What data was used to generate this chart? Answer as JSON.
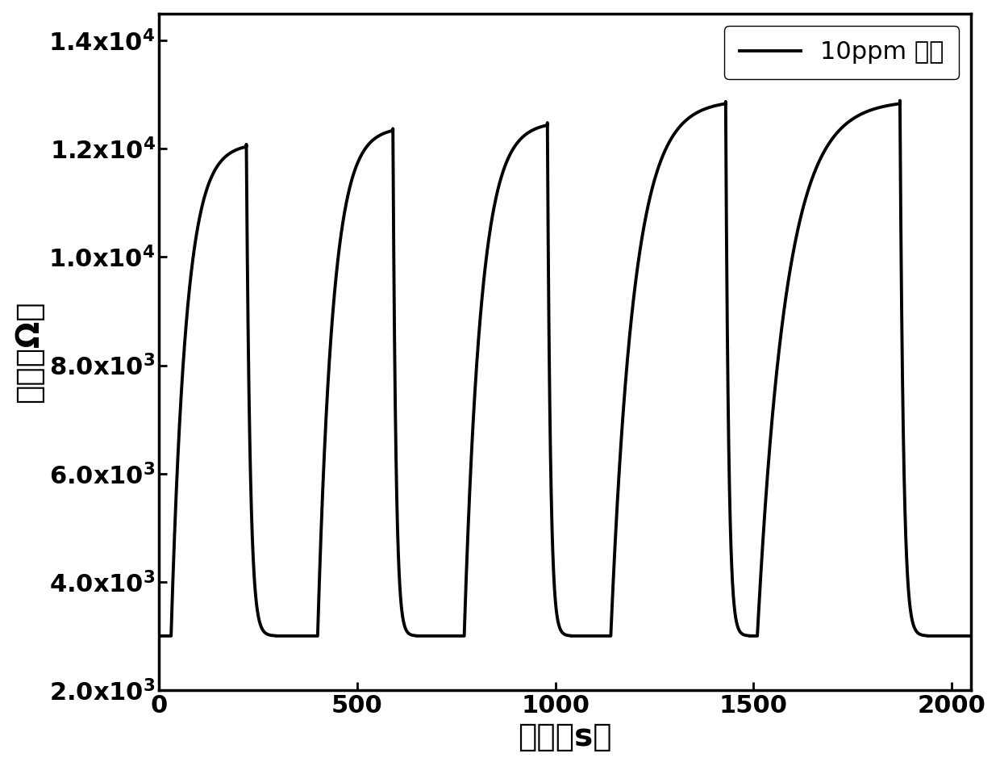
{
  "ylabel": "电阵（Ω）",
  "xlabel": "时间（s）",
  "legend_label": "10ppm 丙酮",
  "xlim": [
    0,
    2050
  ],
  "ylim": [
    2000,
    14500
  ],
  "yticks": [
    2000,
    4000,
    6000,
    8000,
    10000,
    12000,
    14000
  ],
  "xticks": [
    0,
    500,
    1000,
    1500,
    2000
  ],
  "line_color": "#000000",
  "line_width": 2.8,
  "background_color": "#ffffff",
  "base_value": 3000,
  "cycles": [
    {
      "t_low_start": 0,
      "t_rise_start": 30,
      "t_peak": 220,
      "t_fall_end": 295,
      "t_low_end": 370,
      "peak": 12100
    },
    {
      "t_low_start": 370,
      "t_rise_start": 400,
      "t_peak": 590,
      "t_fall_end": 650,
      "t_low_end": 740,
      "peak": 12400
    },
    {
      "t_low_start": 740,
      "t_rise_start": 770,
      "t_peak": 980,
      "t_fall_end": 1040,
      "t_low_end": 1110,
      "peak": 12500
    },
    {
      "t_low_start": 1110,
      "t_rise_start": 1140,
      "t_peak": 1430,
      "t_fall_end": 1490,
      "t_low_end": 1480,
      "peak": 12900
    },
    {
      "t_low_start": 1480,
      "t_rise_start": 1510,
      "t_peak": 1870,
      "t_fall_end": 1940,
      "t_low_end": 2050,
      "peak": 12900
    }
  ]
}
